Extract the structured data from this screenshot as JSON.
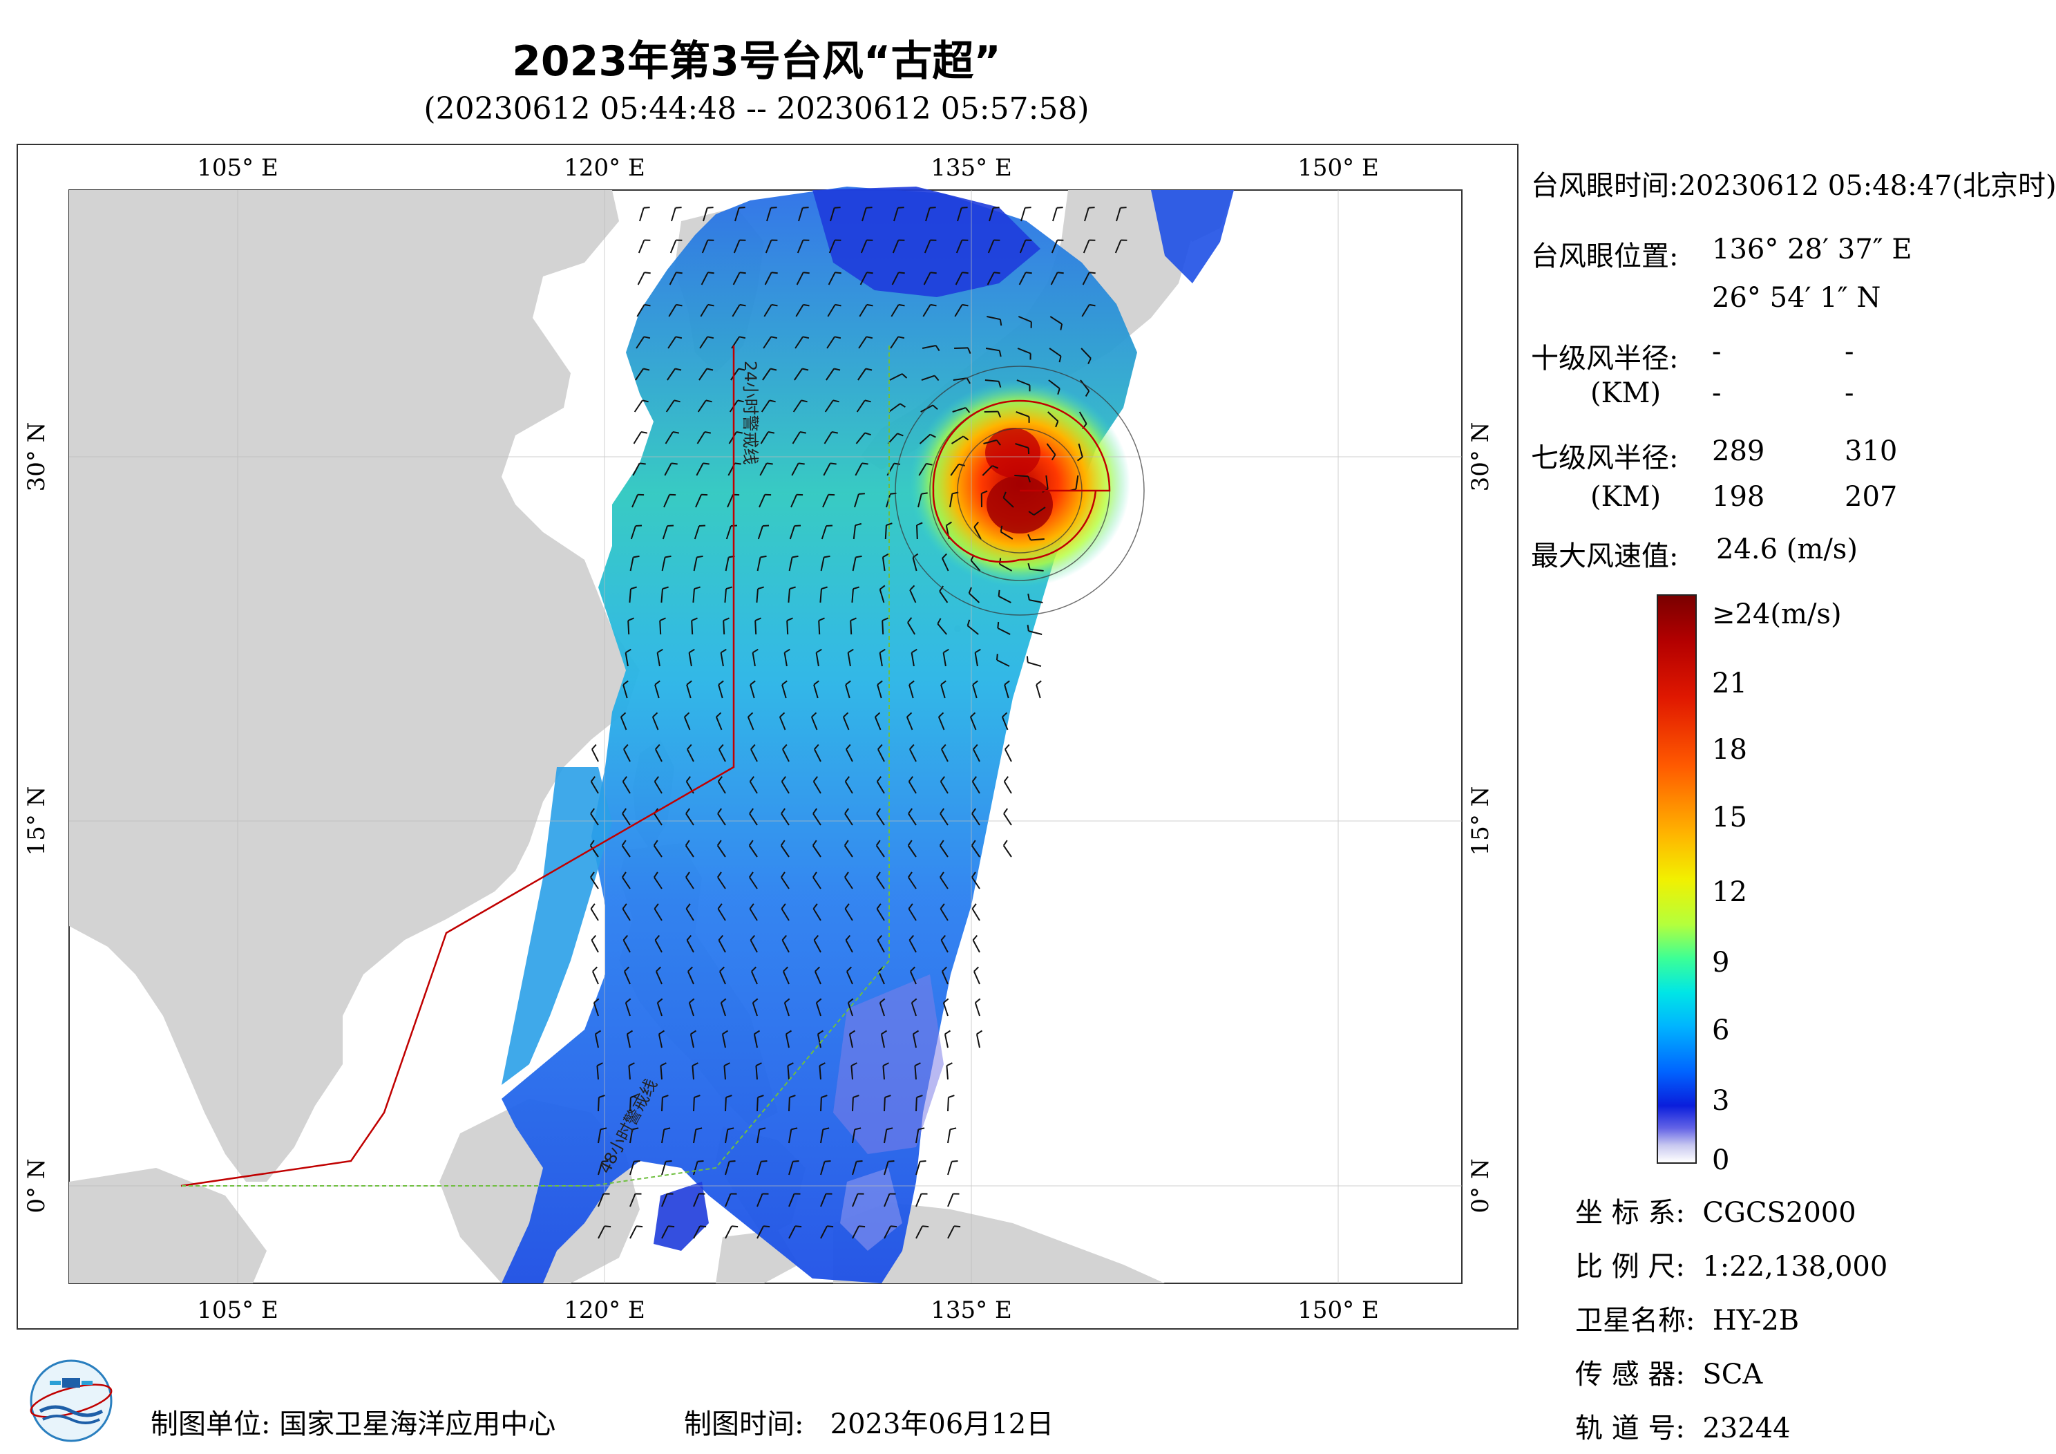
{
  "title": "2023年第3号台风“古超”",
  "subtitle": "(20230612 05:44:48 -- 20230612 05:57:58)",
  "map": {
    "lon_ticks": [
      "105° E",
      "120° E",
      "135° E",
      "150° E"
    ],
    "lat_ticks": [
      "30° N",
      "15° N",
      "0° N"
    ],
    "lon_range": [
      98,
      155
    ],
    "lat_range": [
      -4,
      41
    ],
    "track_labels": [
      "24小时警戒线",
      "48小时警戒线"
    ],
    "colors": {
      "land": "#d3d3d3",
      "sea": "#ffffff",
      "warning24": "#c00000",
      "warning48": "#6fbf3f",
      "typhoon_core": "#c00000"
    }
  },
  "info": {
    "eye_time_label": "台风眼时间:",
    "eye_time_value": "20230612 05:48:47(北京时)",
    "eye_pos_label": "台风眼位置:",
    "eye_lon": "136° 28′ 37″ E",
    "eye_lat": "26° 54′ 1″ N",
    "r10_label": "十级风半径:",
    "r10_unit": "(KM)",
    "r10_values": [
      "-",
      "-",
      "-",
      "-"
    ],
    "r7_label": "七级风半径:",
    "r7_unit": "(KM)",
    "r7_values": [
      "289",
      "310",
      "198",
      "207"
    ],
    "maxwind_label": "最大风速值:",
    "maxwind_value": "24.6 (m/s)"
  },
  "colorbar": {
    "labels": [
      "≥24(m/s)",
      "21",
      "18",
      "15",
      "12",
      "9",
      "6",
      "3",
      "0"
    ],
    "max": 24,
    "min": 0
  },
  "meta": {
    "crs_label": "坐 标 系:",
    "crs_value": "CGCS2000",
    "scale_label": "比 例 尺:",
    "scale_value": "1:22,138,000",
    "sat_label": "卫星名称:",
    "sat_value": "HY-2B",
    "sensor_label": "传 感 器:",
    "sensor_value": "SCA",
    "orbit_label": "轨 道 号:",
    "orbit_value": "23244"
  },
  "footer": {
    "unit_label": "制图单位:",
    "unit_value": "国家卫星海洋应用中心",
    "time_label": "制图时间:",
    "time_value": "2023年06月12日"
  }
}
